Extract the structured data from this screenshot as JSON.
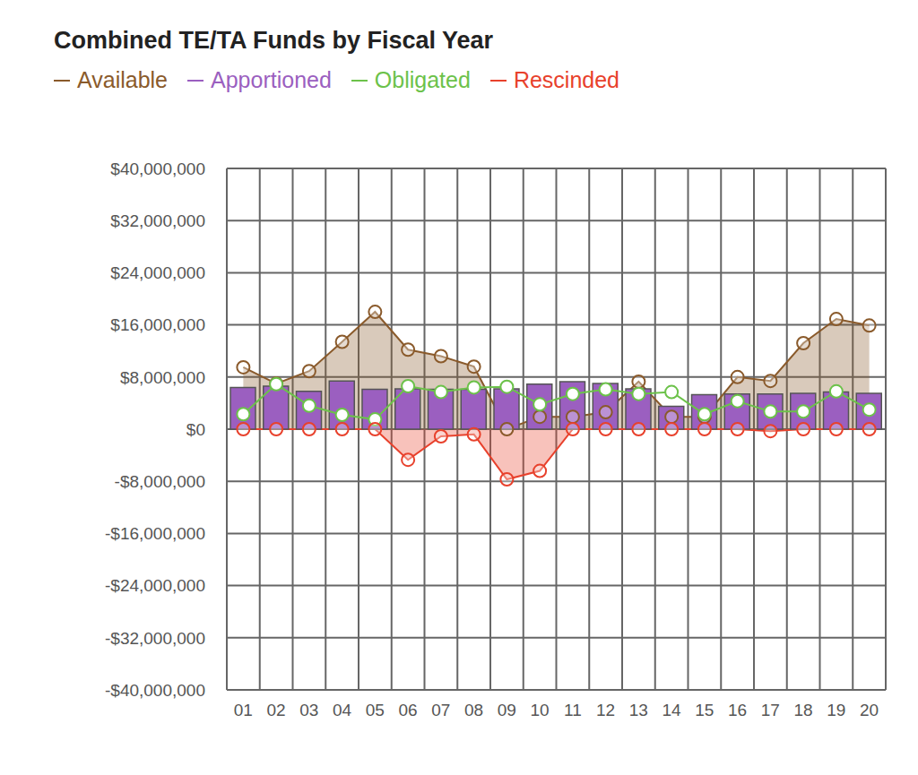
{
  "chart_data": {
    "type": "combo",
    "title": "Combined TE/TA Funds by Fiscal Year",
    "categories": [
      "01",
      "02",
      "03",
      "04",
      "05",
      "06",
      "07",
      "08",
      "09",
      "10",
      "11",
      "12",
      "13",
      "14",
      "15",
      "16",
      "17",
      "18",
      "19",
      "20"
    ],
    "series": [
      {
        "name": "Available",
        "type": "area",
        "color": "#8a5a2b",
        "marker": "circle",
        "values": [
          9500000,
          7000000,
          8900000,
          13400000,
          18000000,
          12200000,
          11200000,
          9600000,
          0,
          1900000,
          1900000,
          2600000,
          7300000,
          1900000,
          1900000,
          8000000,
          7400000,
          13200000,
          16900000,
          15900000
        ]
      },
      {
        "name": "Apportioned",
        "type": "bar",
        "color": "#9b5fc0",
        "values": [
          6400000,
          6600000,
          5800000,
          7400000,
          6100000,
          6200000,
          6100000,
          6100000,
          6200000,
          6900000,
          7300000,
          7000000,
          6200000,
          3500000,
          5300000,
          5400000,
          5400000,
          5500000,
          5700000,
          5500000
        ]
      },
      {
        "name": "Obligated",
        "type": "line",
        "color": "#6cc24a",
        "marker": "circle",
        "values": [
          2300000,
          6900000,
          3600000,
          2200000,
          1500000,
          6600000,
          5700000,
          6400000,
          6500000,
          3800000,
          5400000,
          6100000,
          5400000,
          5700000,
          2300000,
          4300000,
          2700000,
          2700000,
          5800000,
          3000000
        ]
      },
      {
        "name": "Rescinded",
        "type": "area",
        "color": "#e8412c",
        "marker": "circle",
        "values": [
          0,
          0,
          0,
          0,
          0,
          -4700000,
          -1100000,
          -800000,
          -7700000,
          -6400000,
          0,
          0,
          0,
          0,
          0,
          0,
          -300000,
          0,
          0,
          0
        ]
      }
    ],
    "ylim": [
      -40000000,
      40000000
    ],
    "yticks": [
      {
        "value": -40000000,
        "label": "-$40,000,000"
      },
      {
        "value": -32000000,
        "label": "-$32,000,000"
      },
      {
        "value": -24000000,
        "label": "-$24,000,000"
      },
      {
        "value": -16000000,
        "label": "-$16,000,000"
      },
      {
        "value": -8000000,
        "label": "-$8,000,000"
      },
      {
        "value": 0,
        "label": "$0"
      },
      {
        "value": 8000000,
        "label": "$8,000,000"
      },
      {
        "value": 16000000,
        "label": "$16,000,000"
      },
      {
        "value": 24000000,
        "label": "$24,000,000"
      },
      {
        "value": 32000000,
        "label": "$32,000,000"
      },
      {
        "value": 40000000,
        "label": "$40,000,000"
      }
    ],
    "grid": true,
    "legend": "top-left"
  }
}
